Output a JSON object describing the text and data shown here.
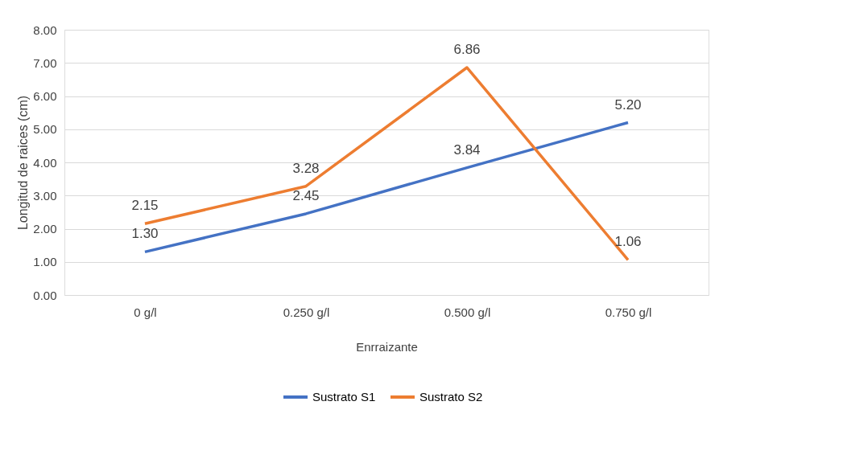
{
  "chart_data": {
    "type": "line",
    "xlabel": "Enrraizante",
    "ylabel": "Longitud de raices (cm)",
    "categories": [
      "0 g/l",
      "0.250 g/l",
      "0.500 g/l",
      "0.750 g/l"
    ],
    "series": [
      {
        "name": "Sustrato S1",
        "color": "#4472c4",
        "values": [
          1.3,
          2.45,
          3.84,
          5.2
        ],
        "value_labels": [
          "1.30",
          "2.45",
          "3.84",
          "5.20"
        ]
      },
      {
        "name": "Sustrato S2",
        "color": "#ed7d31",
        "values": [
          2.15,
          3.28,
          6.86,
          1.06
        ],
        "value_labels": [
          "2.15",
          "3.28",
          "6.86",
          "1.06"
        ]
      }
    ],
    "ylim": [
      0,
      8
    ],
    "yticks": [
      {
        "value": 0,
        "label": "0.00"
      },
      {
        "value": 1,
        "label": "1.00"
      },
      {
        "value": 2,
        "label": "2.00"
      },
      {
        "value": 3,
        "label": "3.00"
      },
      {
        "value": 4,
        "label": "4.00"
      },
      {
        "value": 5,
        "label": "5.00"
      },
      {
        "value": 6,
        "label": "6.00"
      },
      {
        "value": 7,
        "label": "7.00"
      },
      {
        "value": 8,
        "label": "8.00"
      }
    ],
    "grid": "y",
    "legend": "bottom",
    "marker": "none",
    "line_style": "solid"
  }
}
